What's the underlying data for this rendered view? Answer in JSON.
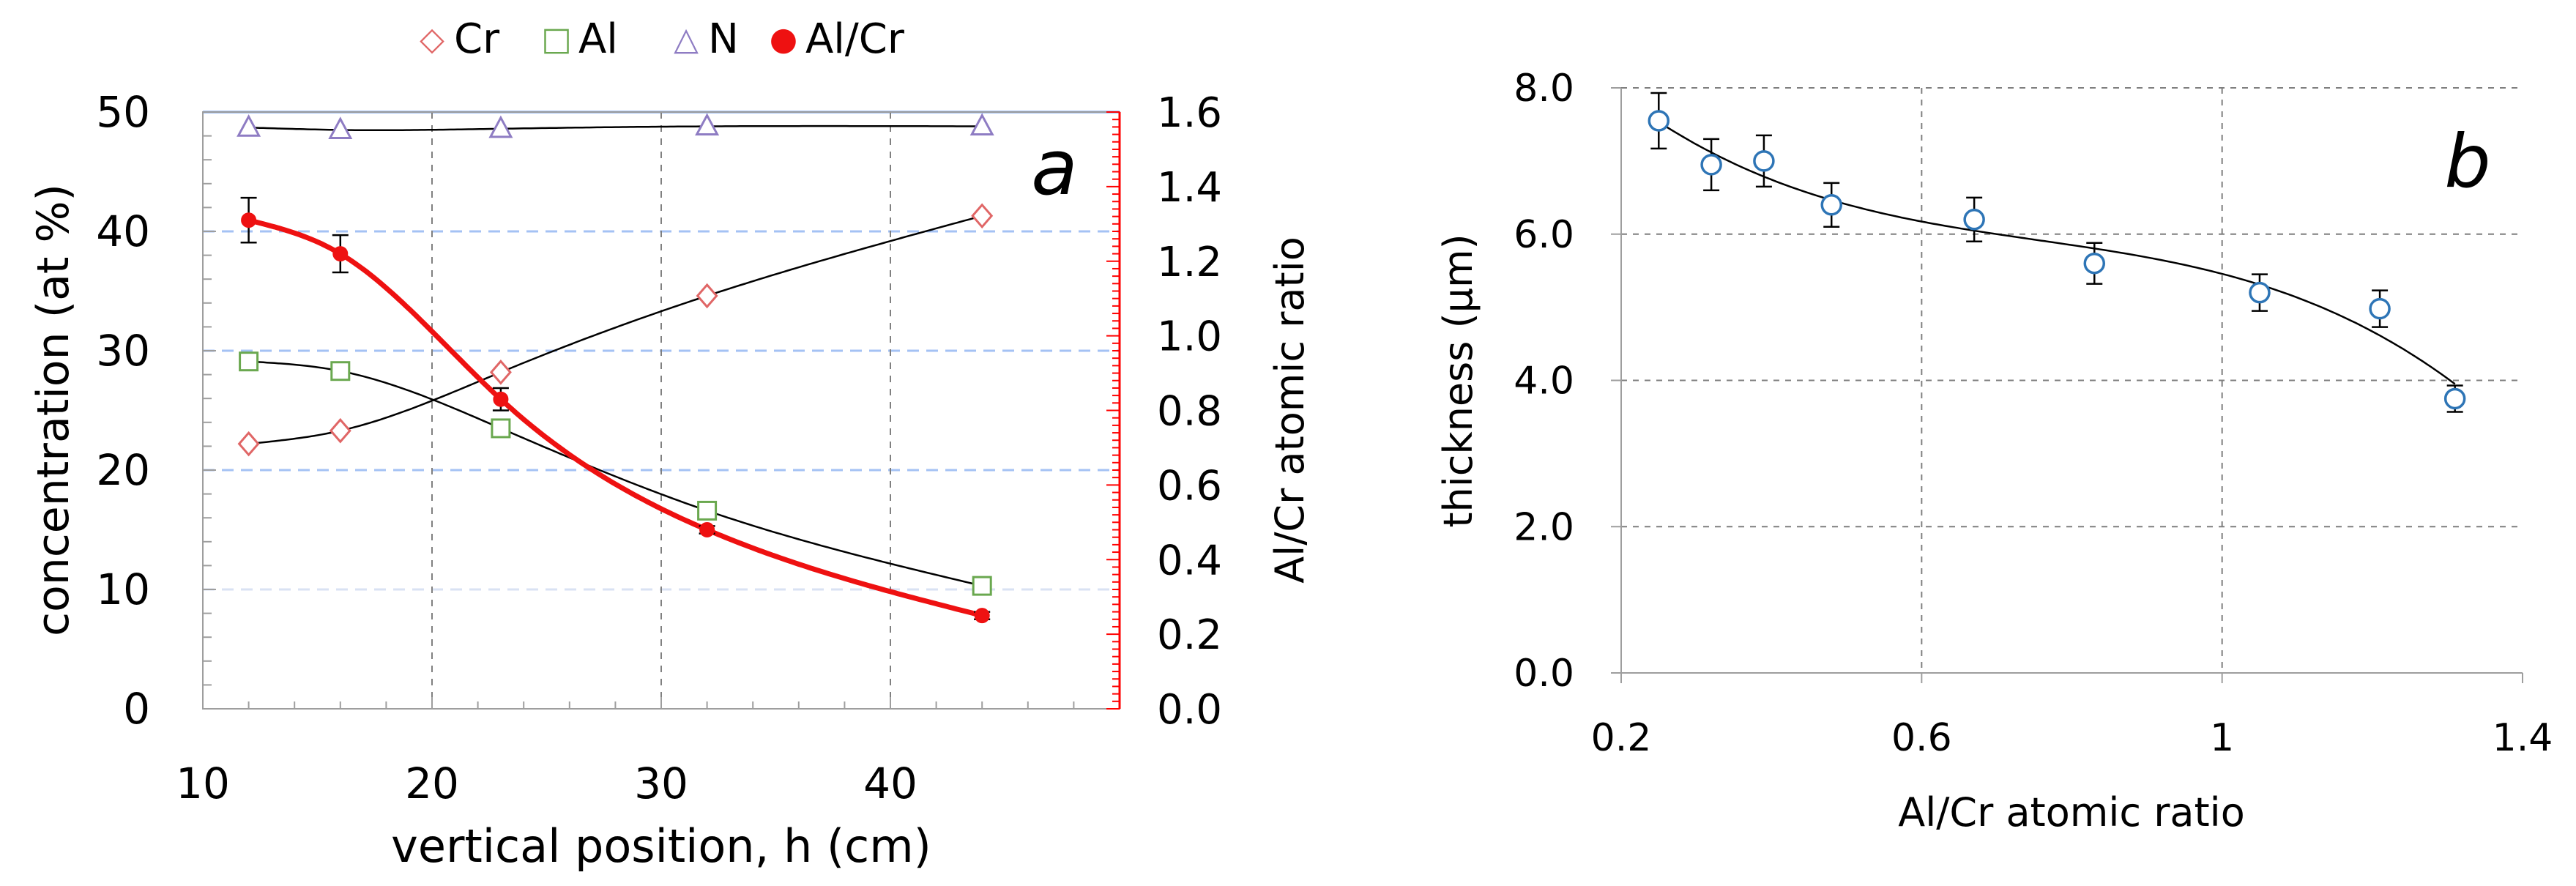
{
  "chart_data": [
    {
      "panel": "a",
      "type": "scatter",
      "panel_label": "a",
      "title": "",
      "xlabel": "vertical position, h (cm)",
      "ylabel": "concentration  (at %)",
      "y2label": "Al/Cr atomic ratio",
      "xlim": [
        10,
        50
      ],
      "ylim": [
        0,
        50
      ],
      "y2lim": [
        0,
        1.6
      ],
      "xticks": [
        "10",
        "20",
        "30",
        "40"
      ],
      "yticks": [
        "0",
        "10",
        "20",
        "30",
        "40",
        "50"
      ],
      "y2ticks": [
        "0.0",
        "0.2",
        "0.4",
        "0.6",
        "0.8",
        "1.0",
        "1.2",
        "1.4",
        "1.6"
      ],
      "legend": [
        {
          "symbol": "◇",
          "label": "Cr",
          "color": "#e06666"
        },
        {
          "symbol": "□",
          "label": "Al",
          "color": "#6aa84f"
        },
        {
          "symbol": "△",
          "label": "N",
          "color": "#8e7cc3"
        },
        {
          "symbol": "●",
          "label": "Al/Cr",
          "color": "#ee1111"
        }
      ],
      "series": [
        {
          "name": "Cr",
          "axis": "left",
          "marker": "diamond",
          "color": "#e06666",
          "x": [
            12,
            16,
            23,
            32,
            44
          ],
          "values": [
            22.2,
            23.3,
            28.2,
            34.6,
            41.3
          ]
        },
        {
          "name": "Al",
          "axis": "left",
          "marker": "square",
          "color": "#6aa84f",
          "x": [
            12,
            16,
            23,
            32,
            44
          ],
          "values": [
            29.1,
            28.3,
            23.5,
            16.6,
            10.3
          ]
        },
        {
          "name": "N",
          "axis": "left",
          "marker": "triangle",
          "color": "#8e7cc3",
          "x": [
            12,
            16,
            23,
            32,
            44
          ],
          "values": [
            48.7,
            48.5,
            48.6,
            48.8,
            48.8
          ]
        },
        {
          "name": "Al/Cr",
          "axis": "right",
          "marker": "dot",
          "color": "#ee1111",
          "x": [
            12,
            16,
            23,
            32,
            44
          ],
          "values": [
            1.31,
            1.22,
            0.83,
            0.48,
            0.25
          ],
          "errors": [
            0.06,
            0.05,
            0.03,
            0.01,
            0.01
          ]
        }
      ]
    },
    {
      "panel": "b",
      "type": "scatter",
      "panel_label": "b",
      "title": "",
      "xlabel": "Al/Cr atomic ratio",
      "ylabel": "thickness  (µm)",
      "xlim": [
        0.2,
        1.4
      ],
      "ylim": [
        0,
        8
      ],
      "xticks": [
        "0.2",
        "0.6",
        "1",
        "1.4"
      ],
      "yticks": [
        "0.0",
        "2.0",
        "4.0",
        "6.0",
        "8.0"
      ],
      "series": [
        {
          "name": "thickness",
          "marker": "circle",
          "color": "#2e75b6",
          "x": [
            0.25,
            0.32,
            0.39,
            0.48,
            0.67,
            0.83,
            1.05,
            1.21,
            1.31
          ],
          "values": [
            7.55,
            6.95,
            7.0,
            6.4,
            6.2,
            5.6,
            5.2,
            4.98,
            3.75
          ],
          "errors": [
            0.38,
            0.35,
            0.35,
            0.3,
            0.3,
            0.28,
            0.25,
            0.25,
            0.18
          ]
        }
      ]
    }
  ]
}
